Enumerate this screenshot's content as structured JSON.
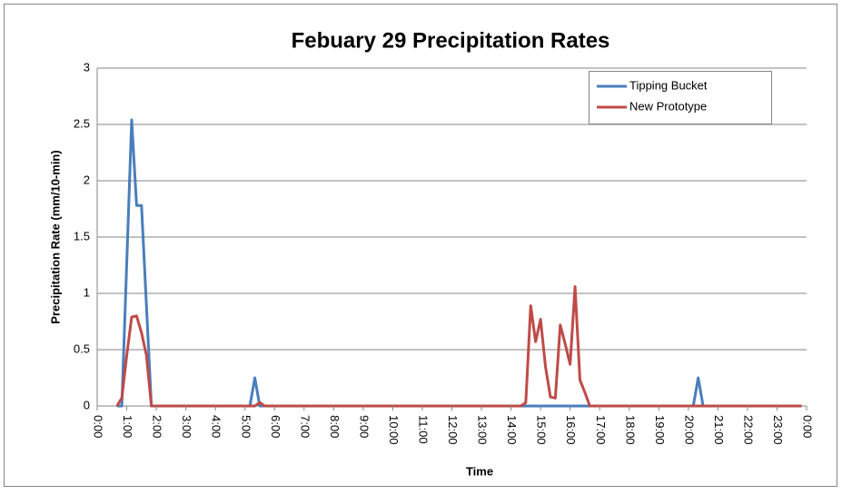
{
  "chart_data": {
    "type": "line",
    "title": "Febuary 29 Precipitation Rates",
    "xlabel": "Time",
    "ylabel": "Precipitation Rate (mm/10-min)",
    "xlim": [
      0,
      24
    ],
    "ylim": [
      0,
      3
    ],
    "xticks": [
      {
        "value": 0,
        "label": "0:00"
      },
      {
        "value": 1,
        "label": "1:00"
      },
      {
        "value": 2,
        "label": "2:00"
      },
      {
        "value": 3,
        "label": "3:00"
      },
      {
        "value": 4,
        "label": "4:00"
      },
      {
        "value": 5,
        "label": "5:00"
      },
      {
        "value": 6,
        "label": "6:00"
      },
      {
        "value": 7,
        "label": "7:00"
      },
      {
        "value": 8,
        "label": "8:00"
      },
      {
        "value": 9,
        "label": "9:00"
      },
      {
        "value": 10,
        "label": "10:00"
      },
      {
        "value": 11,
        "label": "11:00"
      },
      {
        "value": 12,
        "label": "12:00"
      },
      {
        "value": 13,
        "label": "13:00"
      },
      {
        "value": 14,
        "label": "14:00"
      },
      {
        "value": 15,
        "label": "15:00"
      },
      {
        "value": 16,
        "label": "16:00"
      },
      {
        "value": 17,
        "label": "17:00"
      },
      {
        "value": 18,
        "label": "18:00"
      },
      {
        "value": 19,
        "label": "19:00"
      },
      {
        "value": 20,
        "label": "20:00"
      },
      {
        "value": 21,
        "label": "21:00"
      },
      {
        "value": 22,
        "label": "22:00"
      },
      {
        "value": 23,
        "label": "23:00"
      },
      {
        "value": 24,
        "label": "0:00"
      }
    ],
    "yticks": [
      0,
      0.5,
      1,
      1.5,
      2,
      2.5,
      3
    ],
    "grid": true,
    "legend": "upper right",
    "series": [
      {
        "name": "Tipping Bucket",
        "color": "#4a7ebb",
        "x": [
          0.6667,
          0.8333,
          1,
          1.1667,
          1.3333,
          1.5,
          1.6667,
          1.8333,
          5.1667,
          5.3333,
          5.5,
          20.1667,
          20.3333,
          20.5,
          23.8333
        ],
        "values": [
          0,
          0,
          1.27,
          2.54,
          1.78,
          1.78,
          0.89,
          0,
          0,
          0.25,
          0,
          0,
          0.25,
          0,
          0
        ]
      },
      {
        "name": "New Prototype",
        "color": "#be4b48",
        "x": [
          0.6667,
          0.8333,
          1,
          1.1667,
          1.3333,
          1.5,
          1.6667,
          1.8333,
          5.3333,
          5.5,
          5.6667,
          14.3333,
          14.5,
          14.6667,
          14.8333,
          15,
          15.1667,
          15.3333,
          15.5,
          15.6667,
          15.8333,
          16,
          16.1667,
          16.3333,
          16.5,
          16.6667,
          23.8333
        ],
        "values": [
          0,
          0.07,
          0.45,
          0.79,
          0.8,
          0.65,
          0.45,
          0,
          0,
          0.03,
          0,
          0,
          0.03,
          0.89,
          0.57,
          0.77,
          0.35,
          0.08,
          0.07,
          0.72,
          0.55,
          0.37,
          1.06,
          0.23,
          0.12,
          0,
          0
        ]
      }
    ]
  }
}
